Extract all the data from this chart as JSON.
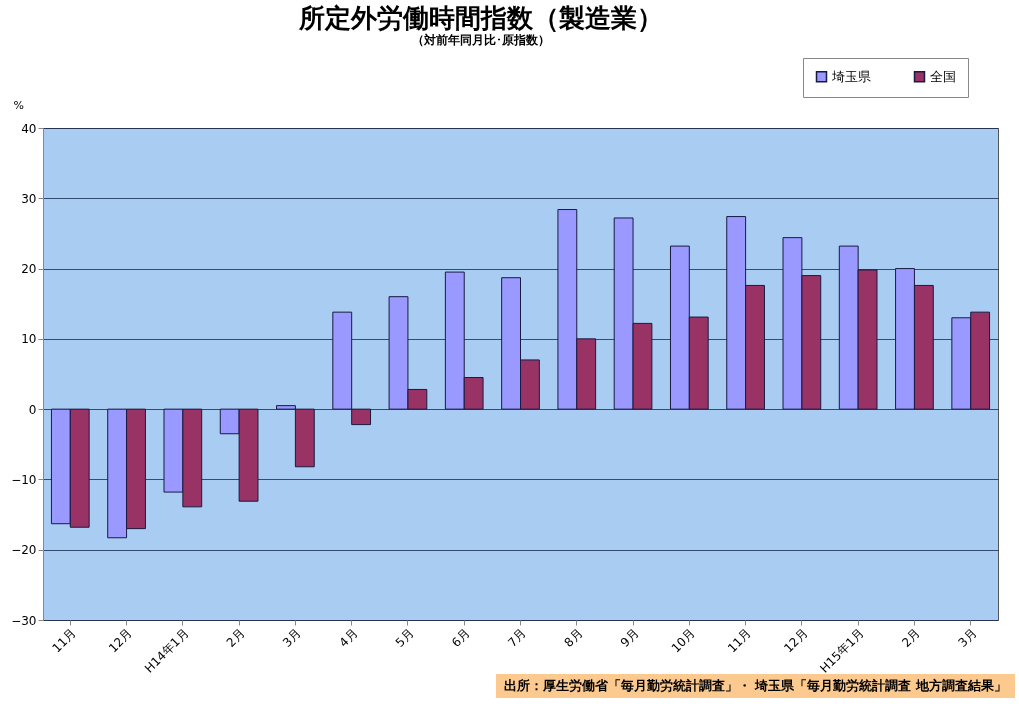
{
  "chart_data": {
    "type": "bar",
    "title": "所定外労働時間指数（製造業）",
    "subtitle": "（対前年同月比･原指数）",
    "ylabel": "%",
    "categories": [
      "11月",
      "12月",
      "H14年1月",
      "2月",
      "3月",
      "4月",
      "5月",
      "6月",
      "7月",
      "8月",
      "9月",
      "10月",
      "11月",
      "12月",
      "H15年1月",
      "2月",
      "3月"
    ],
    "series": [
      {
        "name": "埼玉県",
        "color": "#9999ff",
        "values": [
          -16.3,
          -18.3,
          -11.8,
          -3.5,
          0.5,
          13.8,
          16.0,
          19.5,
          18.7,
          28.4,
          27.2,
          23.2,
          27.4,
          24.4,
          23.2,
          20.0,
          13.0
        ]
      },
      {
        "name": "全国",
        "color": "#993366",
        "values": [
          -16.8,
          -17.0,
          -13.9,
          -13.1,
          -8.2,
          -2.2,
          2.8,
          4.5,
          7.0,
          10.0,
          12.2,
          13.1,
          17.6,
          19.0,
          19.8,
          17.6,
          13.8
        ]
      }
    ],
    "ylim": [
      -30,
      40
    ],
    "yticks": [
      -30,
      -20,
      -10,
      0,
      10,
      20,
      30,
      40
    ],
    "grid": "y",
    "legend": "top right",
    "annotations": [
      "出所：厚生労働省「毎月勤労統計調査」・ 埼玉県「毎月勤労統計調査 地方調査結果」"
    ]
  }
}
